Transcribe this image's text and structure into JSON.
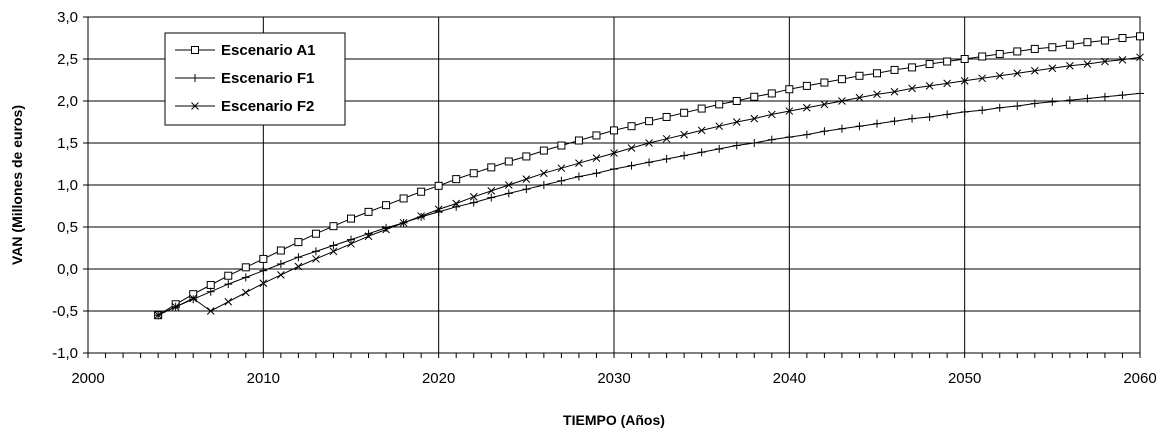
{
  "chart_data": {
    "type": "line",
    "title": "",
    "xlabel": "TIEMPO (Años)",
    "ylabel": "VAN (Millones de euros)",
    "xlim": [
      2000,
      2060
    ],
    "ylim": [
      -1.0,
      3.0
    ],
    "x_ticks": [
      "2000",
      "2010",
      "2020",
      "2030",
      "2040",
      "2050",
      "2060"
    ],
    "y_ticks": [
      "3,0",
      "2,5",
      "2,0",
      "1,5",
      "1,0",
      "0,5",
      "0,0",
      "-0,5",
      "-1,0"
    ],
    "grid": true,
    "legend_position": "top-left",
    "series": [
      {
        "name": "Escenario A1",
        "marker": "square",
        "x": [
          2004,
          2005,
          2006,
          2007,
          2008,
          2009,
          2010,
          2011,
          2012,
          2013,
          2014,
          2015,
          2016,
          2017,
          2018,
          2019,
          2020,
          2021,
          2022,
          2023,
          2024,
          2025,
          2026,
          2027,
          2028,
          2029,
          2030,
          2031,
          2032,
          2033,
          2034,
          2035,
          2036,
          2037,
          2038,
          2039,
          2040,
          2041,
          2042,
          2043,
          2044,
          2045,
          2046,
          2047,
          2048,
          2049,
          2050,
          2051,
          2052,
          2053,
          2054,
          2055,
          2056,
          2057,
          2058,
          2059,
          2060
        ],
        "values": [
          -0.55,
          -0.42,
          -0.3,
          -0.19,
          -0.08,
          0.02,
          0.12,
          0.22,
          0.32,
          0.42,
          0.51,
          0.6,
          0.68,
          0.76,
          0.84,
          0.92,
          0.99,
          1.07,
          1.14,
          1.21,
          1.28,
          1.34,
          1.41,
          1.47,
          1.53,
          1.59,
          1.65,
          1.7,
          1.76,
          1.81,
          1.86,
          1.91,
          1.96,
          2.0,
          2.05,
          2.09,
          2.14,
          2.18,
          2.22,
          2.26,
          2.3,
          2.33,
          2.37,
          2.4,
          2.44,
          2.47,
          2.5,
          2.53,
          2.56,
          2.59,
          2.62,
          2.64,
          2.67,
          2.7,
          2.72,
          2.75,
          2.77
        ]
      },
      {
        "name": "Escenario F1",
        "marker": "plus",
        "x": [
          2004,
          2005,
          2006,
          2007,
          2008,
          2009,
          2010,
          2011,
          2012,
          2013,
          2014,
          2015,
          2016,
          2017,
          2018,
          2019,
          2020,
          2021,
          2022,
          2023,
          2024,
          2025,
          2026,
          2027,
          2028,
          2029,
          2030,
          2031,
          2032,
          2033,
          2034,
          2035,
          2036,
          2037,
          2038,
          2039,
          2040,
          2041,
          2042,
          2043,
          2044,
          2045,
          2046,
          2047,
          2048,
          2049,
          2050,
          2051,
          2052,
          2053,
          2054,
          2055,
          2056,
          2057,
          2058,
          2059,
          2060
        ],
        "values": [
          -0.55,
          -0.45,
          -0.36,
          -0.27,
          -0.18,
          -0.1,
          -0.02,
          0.06,
          0.14,
          0.21,
          0.28,
          0.35,
          0.42,
          0.49,
          0.55,
          0.62,
          0.68,
          0.74,
          0.79,
          0.85,
          0.9,
          0.95,
          1.0,
          1.05,
          1.1,
          1.14,
          1.19,
          1.23,
          1.27,
          1.31,
          1.35,
          1.39,
          1.43,
          1.47,
          1.5,
          1.54,
          1.57,
          1.6,
          1.64,
          1.67,
          1.7,
          1.73,
          1.76,
          1.79,
          1.81,
          1.84,
          1.87,
          1.89,
          1.92,
          1.94,
          1.97,
          1.99,
          2.01,
          2.03,
          2.05,
          2.07,
          2.09
        ]
      },
      {
        "name": "Escenario F2",
        "marker": "x",
        "x": [
          2004,
          2005,
          2006,
          2007,
          2008,
          2009,
          2010,
          2011,
          2012,
          2013,
          2014,
          2015,
          2016,
          2017,
          2018,
          2019,
          2020,
          2021,
          2022,
          2023,
          2024,
          2025,
          2026,
          2027,
          2028,
          2029,
          2030,
          2031,
          2032,
          2033,
          2034,
          2035,
          2036,
          2037,
          2038,
          2039,
          2040,
          2041,
          2042,
          2043,
          2044,
          2045,
          2046,
          2047,
          2048,
          2049,
          2050,
          2051,
          2052,
          2053,
          2054,
          2055,
          2056,
          2057,
          2058,
          2059,
          2060
        ],
        "values": [
          -0.55,
          -0.45,
          -0.35,
          -0.5,
          -0.39,
          -0.28,
          -0.17,
          -0.07,
          0.03,
          0.12,
          0.21,
          0.3,
          0.39,
          0.47,
          0.55,
          0.63,
          0.71,
          0.78,
          0.86,
          0.93,
          1.0,
          1.07,
          1.14,
          1.2,
          1.26,
          1.32,
          1.38,
          1.44,
          1.5,
          1.55,
          1.6,
          1.65,
          1.7,
          1.75,
          1.79,
          1.84,
          1.88,
          1.92,
          1.96,
          2.0,
          2.04,
          2.08,
          2.11,
          2.15,
          2.18,
          2.21,
          2.24,
          2.27,
          2.3,
          2.33,
          2.36,
          2.39,
          2.42,
          2.44,
          2.47,
          2.49,
          2.52
        ]
      }
    ]
  }
}
